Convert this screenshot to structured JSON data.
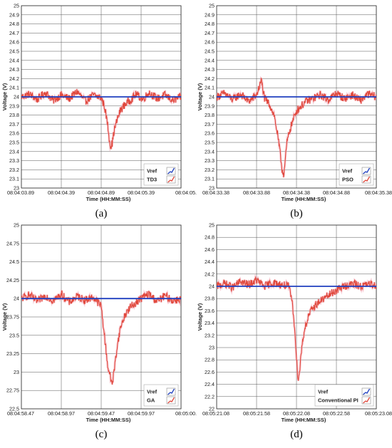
{
  "chart_data": [
    {
      "type": "line",
      "caption": "(a)",
      "xlabel": "Time (HH:MM:SS)",
      "ylabel": "Voltage (V)",
      "x_tick_labels": [
        "08:04:03.89",
        "08:04:04.39",
        "08:04:04.89",
        "08:04:05.39",
        "08:04:05."
      ],
      "y_ticks": [
        23,
        23.1,
        23.2,
        23.3,
        23.4,
        23.5,
        23.6,
        23.7,
        23.8,
        23.9,
        24,
        24.1,
        24.2,
        24.3,
        24.4,
        24.5,
        24.6,
        24.7,
        24.8,
        24.9,
        25
      ],
      "y_tick_labels": [
        "23",
        "23.1",
        "23.2",
        "23.3",
        "23.4",
        "23.5",
        "23.6",
        "23.7",
        "23.8",
        "23.9",
        "24",
        "24.1",
        "24.2",
        "24.3",
        "24.4",
        "24.5",
        "24.6",
        "24.7",
        "24.8",
        "24.9",
        "25"
      ],
      "ylim": [
        23,
        25
      ],
      "grid": true,
      "legend_position": "bottom-right",
      "series": [
        {
          "name": "Vref",
          "color": "#1f3fbf",
          "x": [
            0,
            1
          ],
          "values": [
            24,
            24
          ]
        },
        {
          "name": "TD3",
          "color": "#e0483c",
          "x": [
            0,
            0.05,
            0.1,
            0.15,
            0.2,
            0.25,
            0.3,
            0.35,
            0.4,
            0.45,
            0.48,
            0.5,
            0.52,
            0.54,
            0.55,
            0.56,
            0.57,
            0.58,
            0.6,
            0.62,
            0.65,
            0.68,
            0.72,
            0.76,
            0.8,
            0.85,
            0.9,
            0.95,
            1
          ],
          "values": [
            24.0,
            24.03,
            23.97,
            24.05,
            23.96,
            24.02,
            23.98,
            24.06,
            23.95,
            24.02,
            24.0,
            23.99,
            23.9,
            23.7,
            23.55,
            23.45,
            23.5,
            23.62,
            23.75,
            23.85,
            23.92,
            23.96,
            24.03,
            23.97,
            24.05,
            23.98,
            24.02,
            23.96,
            24.0
          ]
        }
      ]
    },
    {
      "type": "line",
      "caption": "(b)",
      "xlabel": "Time (HH:MM:SS)",
      "ylabel": "Voltage (V)",
      "x_tick_labels": [
        "08:04:33.38",
        "08:04:33.88",
        "08:04:34.38",
        "08:04:34.88",
        "08:04:35.38"
      ],
      "y_ticks": [
        23,
        23.1,
        23.2,
        23.3,
        23.4,
        23.5,
        23.6,
        23.7,
        23.8,
        23.9,
        24,
        24.1,
        24.2,
        24.3,
        24.4,
        24.5,
        24.6,
        24.7,
        24.8,
        24.9,
        25
      ],
      "y_tick_labels": [
        "23",
        "23.1",
        "23.2",
        "23.3",
        "23.4",
        "23.5",
        "23.6",
        "23.7",
        "23.8",
        "23.9",
        "24",
        "24.1",
        "24.2",
        "24.3",
        "24.4",
        "24.5",
        "24.6",
        "24.7",
        "24.8",
        "24.9",
        "25"
      ],
      "ylim": [
        23,
        25
      ],
      "grid": true,
      "legend_position": "bottom-right",
      "series": [
        {
          "name": "Vref",
          "color": "#1f3fbf",
          "x": [
            0,
            1
          ],
          "values": [
            24,
            24
          ]
        },
        {
          "name": "PSO",
          "color": "#e0483c",
          "x": [
            0,
            0.05,
            0.1,
            0.15,
            0.2,
            0.25,
            0.28,
            0.3,
            0.33,
            0.36,
            0.38,
            0.4,
            0.41,
            0.42,
            0.43,
            0.44,
            0.46,
            0.48,
            0.5,
            0.53,
            0.56,
            0.6,
            0.65,
            0.7,
            0.75,
            0.8,
            0.85,
            0.9,
            0.95,
            1
          ],
          "values": [
            24.0,
            24.04,
            23.97,
            24.03,
            23.95,
            24.02,
            24.18,
            23.98,
            23.92,
            23.8,
            23.6,
            23.35,
            23.2,
            23.15,
            23.3,
            23.5,
            23.65,
            23.75,
            23.85,
            23.9,
            23.95,
            23.98,
            24.02,
            23.97,
            24.04,
            23.98,
            24.02,
            23.96,
            24.03,
            24.0
          ]
        }
      ]
    },
    {
      "type": "line",
      "caption": "(c)",
      "xlabel": "Time (HH:MM:SS)",
      "ylabel": "Voltage (V)",
      "x_tick_labels": [
        "08:04:58.47",
        "08:04:58.97",
        "08:04:59.47",
        "08:04:59.97",
        "08:05:00."
      ],
      "y_ticks": [
        22.5,
        22.75,
        23,
        23.25,
        23.5,
        23.75,
        24,
        24.25,
        24.5,
        24.75,
        25
      ],
      "y_tick_labels": [
        "22.5",
        "22.75",
        "23",
        "23.25",
        "23.5",
        "23.75",
        "24",
        "24.25",
        "24.5",
        "24.75",
        "25"
      ],
      "ylim": [
        22.5,
        25
      ],
      "grid": true,
      "legend_position": "bottom-right",
      "series": [
        {
          "name": "Vref",
          "color": "#1f3fbf",
          "x": [
            0,
            1
          ],
          "values": [
            24,
            24
          ]
        },
        {
          "name": "GA",
          "color": "#e0483c",
          "x": [
            0,
            0.05,
            0.1,
            0.15,
            0.2,
            0.25,
            0.3,
            0.35,
            0.4,
            0.45,
            0.5,
            0.52,
            0.54,
            0.56,
            0.57,
            0.58,
            0.6,
            0.62,
            0.65,
            0.68,
            0.72,
            0.76,
            0.8,
            0.85,
            0.9,
            0.95,
            1
          ],
          "values": [
            24.0,
            24.05,
            23.96,
            24.04,
            23.97,
            24.06,
            23.95,
            24.03,
            23.98,
            24.02,
            23.9,
            23.5,
            23.1,
            22.9,
            22.85,
            23.0,
            23.35,
            23.6,
            23.78,
            23.88,
            23.95,
            24.02,
            24.06,
            23.96,
            24.04,
            23.97,
            24.0
          ]
        }
      ]
    },
    {
      "type": "line",
      "caption": "(d)",
      "xlabel": "Time (HH:MM:SS)",
      "ylabel": "Voltage (V)",
      "x_tick_labels": [
        "08:05:21.08",
        "08:05:21.58",
        "08:05:22.08",
        "08:05:22.58",
        "08:05:23.08"
      ],
      "y_ticks": [
        22,
        22.2,
        22.4,
        22.6,
        22.8,
        23,
        23.2,
        23.4,
        23.6,
        23.8,
        24,
        24.2,
        24.4,
        24.6,
        24.8,
        25
      ],
      "y_tick_labels": [
        "22",
        "22.2",
        "22.4",
        "22.6",
        "22.8",
        "23",
        "23.2",
        "23.4",
        "23.6",
        "23.8",
        "24",
        "24.2",
        "24.4",
        "24.6",
        "24.8",
        "25"
      ],
      "ylim": [
        22,
        25
      ],
      "grid": true,
      "legend_position": "bottom-right",
      "series": [
        {
          "name": "Vref",
          "color": "#1f3fbf",
          "x": [
            0,
            1
          ],
          "values": [
            24,
            24
          ]
        },
        {
          "name": "Conventional PI",
          "color": "#e0483c",
          "x": [
            0,
            0.05,
            0.1,
            0.15,
            0.2,
            0.25,
            0.3,
            0.35,
            0.4,
            0.45,
            0.47,
            0.49,
            0.5,
            0.51,
            0.52,
            0.53,
            0.55,
            0.58,
            0.62,
            0.66,
            0.7,
            0.74,
            0.78,
            0.82,
            0.86,
            0.9,
            0.95,
            1
          ],
          "values": [
            24.0,
            24.05,
            23.98,
            24.08,
            24.02,
            24.1,
            24.0,
            24.06,
            24.03,
            24.0,
            23.8,
            23.3,
            22.8,
            22.5,
            22.6,
            22.95,
            23.3,
            23.55,
            23.7,
            23.78,
            23.85,
            23.92,
            23.98,
            24.02,
            24.04,
            24.0,
            24.03,
            24.02
          ]
        }
      ]
    }
  ]
}
